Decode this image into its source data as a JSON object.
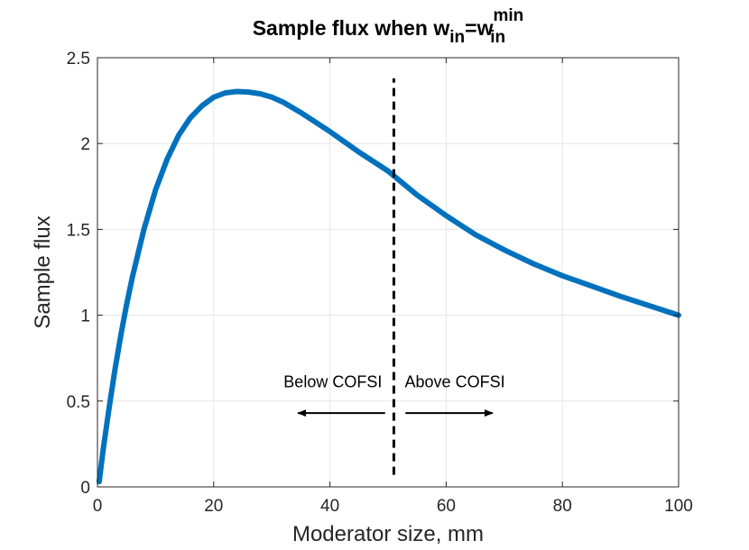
{
  "chart_data": {
    "type": "line",
    "title": {
      "prefix": "Sample flux when w",
      "sub1": "in",
      "equals": "=w",
      "sup2": "min",
      "sub2": "in"
    },
    "xlabel": "Moderator size, mm",
    "ylabel": "Sample flux",
    "xlim": [
      0,
      100
    ],
    "ylim": [
      0,
      2.5
    ],
    "xticks": [
      0,
      20,
      40,
      60,
      80,
      100
    ],
    "yticks": [
      0,
      0.5,
      1,
      1.5,
      2,
      2.5
    ],
    "xtick_labels": [
      "0",
      "20",
      "40",
      "60",
      "80",
      "100"
    ],
    "ytick_labels": [
      "0",
      "0.5",
      "1",
      "1.5",
      "2",
      "2.5"
    ],
    "grid": true,
    "series": [
      {
        "name": "Sample flux",
        "color": "#0072BD",
        "x": [
          0.3,
          1,
          2,
          3,
          4,
          5,
          6,
          8,
          10,
          12,
          14,
          16,
          18,
          20,
          22,
          24,
          26,
          28,
          30,
          32,
          35,
          40,
          45,
          50,
          55,
          60,
          65,
          70,
          75,
          80,
          85,
          90,
          95,
          100
        ],
        "y": [
          0.03,
          0.22,
          0.46,
          0.68,
          0.88,
          1.06,
          1.22,
          1.5,
          1.73,
          1.91,
          2.05,
          2.15,
          2.22,
          2.27,
          2.295,
          2.303,
          2.3,
          2.29,
          2.27,
          2.24,
          2.18,
          2.07,
          1.95,
          1.84,
          1.7,
          1.58,
          1.47,
          1.38,
          1.3,
          1.23,
          1.17,
          1.11,
          1.055,
          1.0
        ]
      }
    ],
    "vline": {
      "x": 51,
      "y_from": 0.07,
      "y_to": 2.38,
      "style": "dashed",
      "color": "#000000"
    },
    "annotations": [
      {
        "text": "Below COFSI",
        "x": 40.5,
        "y": 0.58,
        "arrow_from_x": 49.5,
        "arrow_to_x": 34.5,
        "arrow_y": 0.43
      },
      {
        "text": "Above COFSI",
        "x": 61.5,
        "y": 0.58,
        "arrow_from_x": 53,
        "arrow_to_x": 68,
        "arrow_y": 0.43
      }
    ]
  }
}
